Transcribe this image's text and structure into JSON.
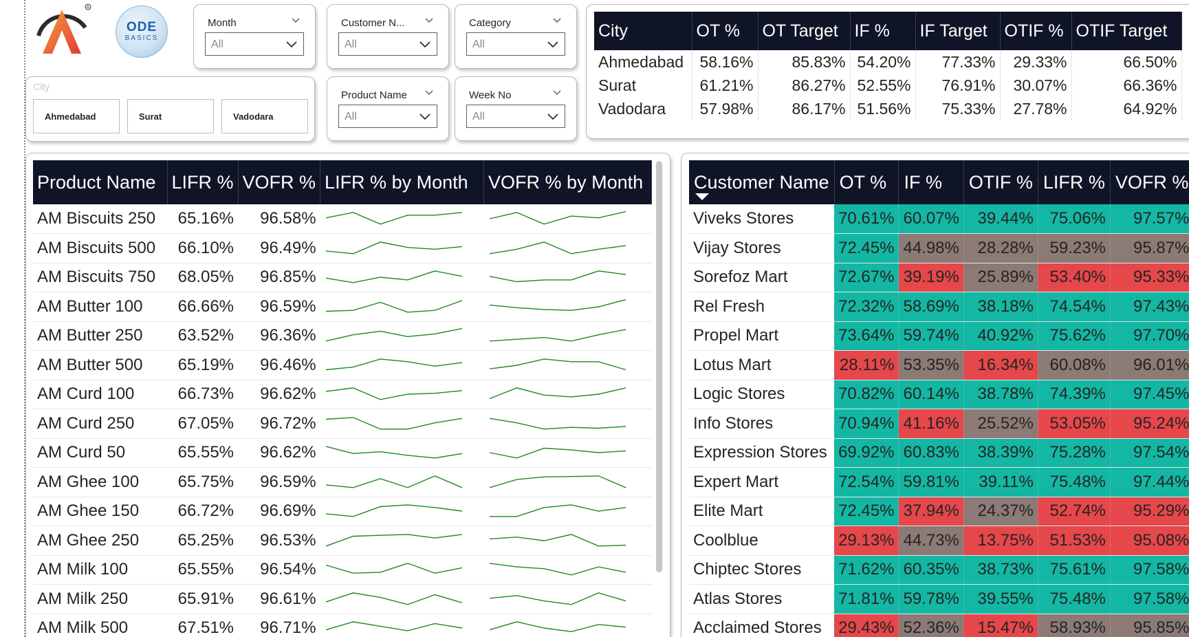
{
  "colors": {
    "header_bg": "#0f1527",
    "good": "#13b7a3",
    "neutral": "#8b7a75",
    "bad": "#e5474b",
    "spark_line": "#1e8a1e"
  },
  "logos": {
    "codebasics_top": "ODE",
    "codebasics_bottom": "BASICS"
  },
  "filters": {
    "month": {
      "title": "Month",
      "value": "All"
    },
    "customer": {
      "title": "Customer N...",
      "value": "All"
    },
    "category": {
      "title": "Category",
      "value": "All"
    },
    "product": {
      "title": "Product Name",
      "value": "All"
    },
    "week": {
      "title": "Week No",
      "value": "All"
    },
    "city": {
      "title": "City",
      "buttons": [
        "Ahmedabad",
        "Surat",
        "Vadodara"
      ]
    }
  },
  "city_table": {
    "headers": [
      "City",
      "OT %",
      "OT Target",
      "IF %",
      "IF Target",
      "OTIF %",
      "OTIF Target"
    ],
    "rows": [
      [
        "Ahmedabad",
        "58.16%",
        "85.83%",
        "54.20%",
        "77.33%",
        "29.33%",
        "66.50%"
      ],
      [
        "Surat",
        "61.21%",
        "86.27%",
        "52.55%",
        "76.91%",
        "30.07%",
        "66.36%"
      ],
      [
        "Vadodara",
        "57.98%",
        "86.17%",
        "51.56%",
        "75.33%",
        "27.78%",
        "64.92%"
      ]
    ]
  },
  "product_table": {
    "headers": [
      "Product Name",
      "LIFR %",
      "VOFR %",
      "LIFR % by Month",
      "VOFR % by Month"
    ],
    "rows": [
      {
        "name": "AM Biscuits 250",
        "lifr": "65.16%",
        "vofr": "96.58%",
        "lifr_trend": [
          0.55,
          0.85,
          0.2,
          0.7,
          0.7,
          0.85
        ],
        "vofr_trend": [
          0.5,
          0.85,
          0.2,
          0.65,
          0.55,
          0.9
        ]
      },
      {
        "name": "AM Biscuits 500",
        "lifr": "66.10%",
        "vofr": "96.49%",
        "lifr_trend": [
          0.35,
          0.2,
          0.85,
          0.55,
          0.45,
          0.6
        ],
        "vofr_trend": [
          0.2,
          0.45,
          0.85,
          0.2,
          0.45,
          0.65
        ]
      },
      {
        "name": "AM Biscuits 750",
        "lifr": "68.05%",
        "vofr": "96.85%",
        "lifr_trend": [
          0.45,
          0.2,
          0.5,
          0.35,
          0.85,
          0.55
        ],
        "vofr_trend": [
          0.55,
          0.25,
          0.35,
          0.35,
          0.85,
          0.65
        ]
      },
      {
        "name": "AM Butter 100",
        "lifr": "66.66%",
        "vofr": "96.59%",
        "lifr_trend": [
          0.25,
          0.3,
          0.75,
          0.2,
          0.3,
          0.85
        ],
        "vofr_trend": [
          0.6,
          0.45,
          0.35,
          0.3,
          0.5,
          0.9
        ]
      },
      {
        "name": "AM Butter 250",
        "lifr": "63.52%",
        "vofr": "96.36%",
        "lifr_trend": [
          0.2,
          0.55,
          0.75,
          0.45,
          0.6,
          0.9
        ],
        "vofr_trend": [
          0.2,
          0.3,
          0.4,
          0.2,
          0.55,
          0.85
        ]
      },
      {
        "name": "AM Butter 500",
        "lifr": "65.19%",
        "vofr": "96.46%",
        "lifr_trend": [
          0.25,
          0.4,
          0.85,
          0.7,
          0.45,
          0.65
        ],
        "vofr_trend": [
          0.3,
          0.5,
          0.85,
          0.7,
          0.7,
          0.25
        ]
      },
      {
        "name": "AM Curd 100",
        "lifr": "66.73%",
        "vofr": "96.62%",
        "lifr_trend": [
          0.65,
          0.85,
          0.2,
          0.5,
          0.55,
          0.7
        ],
        "vofr_trend": [
          0.25,
          0.85,
          0.45,
          0.35,
          0.5,
          0.85
        ]
      },
      {
        "name": "AM Curd 250",
        "lifr": "67.05%",
        "vofr": "96.72%",
        "lifr_trend": [
          0.75,
          0.85,
          0.2,
          0.2,
          0.55,
          0.8
        ],
        "vofr_trend": [
          0.8,
          0.55,
          0.2,
          0.3,
          0.25,
          0.35
        ]
      },
      {
        "name": "AM Curd 50",
        "lifr": "65.55%",
        "vofr": "96.62%",
        "lifr_trend": [
          0.85,
          0.45,
          0.55,
          0.35,
          0.2,
          0.45
        ],
        "vofr_trend": [
          0.5,
          0.2,
          0.75,
          0.65,
          0.5,
          0.6
        ]
      },
      {
        "name": "AM Ghee 100",
        "lifr": "65.75%",
        "vofr": "96.59%",
        "lifr_trend": [
          0.35,
          0.2,
          0.7,
          0.2,
          0.85,
          0.2
        ],
        "vofr_trend": [
          0.2,
          0.65,
          0.8,
          0.82,
          0.85,
          0.2
        ]
      },
      {
        "name": "AM Ghee 150",
        "lifr": "66.72%",
        "vofr": "96.69%",
        "lifr_trend": [
          0.35,
          0.2,
          0.75,
          0.85,
          0.7,
          0.5
        ],
        "vofr_trend": [
          0.2,
          0.2,
          0.7,
          0.85,
          0.5,
          0.7
        ]
      },
      {
        "name": "AM Ghee 250",
        "lifr": "65.25%",
        "vofr": "96.53%",
        "lifr_trend": [
          0.2,
          0.75,
          0.8,
          0.85,
          0.65,
          0.85
        ],
        "vofr_trend": [
          0.6,
          0.7,
          0.5,
          0.85,
          0.2,
          0.25
        ]
      },
      {
        "name": "AM Milk 100",
        "lifr": "65.55%",
        "vofr": "96.54%",
        "lifr_trend": [
          0.75,
          0.3,
          0.35,
          0.85,
          0.3,
          0.6
        ],
        "vofr_trend": [
          0.85,
          0.65,
          0.55,
          0.2,
          0.65,
          0.35
        ]
      },
      {
        "name": "AM Milk 250",
        "lifr": "65.91%",
        "vofr": "96.61%",
        "lifr_trend": [
          0.35,
          0.85,
          0.6,
          0.2,
          0.75,
          0.3
        ],
        "vofr_trend": [
          0.55,
          0.7,
          0.4,
          0.2,
          0.85,
          0.4
        ]
      },
      {
        "name": "AM Milk 500",
        "lifr": "67.51%",
        "vofr": "96.71%",
        "lifr_trend": [
          0.4,
          0.85,
          0.6,
          0.35,
          0.75,
          0.5
        ],
        "vofr_trend": [
          0.4,
          0.85,
          0.5,
          0.3,
          0.7,
          0.55
        ]
      }
    ]
  },
  "customer_table": {
    "headers": [
      "Customer Name",
      "OT %",
      "IF %",
      "OTIF %",
      "LIFR %",
      "VOFR %"
    ],
    "rows": [
      {
        "name": "Viveks Stores",
        "values": [
          "70.61%",
          "60.07%",
          "39.44%",
          "75.06%",
          "97.57%"
        ],
        "status": [
          "good",
          "good",
          "good",
          "good",
          "good"
        ]
      },
      {
        "name": "Vijay Stores",
        "values": [
          "72.45%",
          "44.98%",
          "28.28%",
          "59.23%",
          "95.87%"
        ],
        "status": [
          "good",
          "neutral",
          "neutral",
          "neutral",
          "neutral"
        ]
      },
      {
        "name": "Sorefoz Mart",
        "values": [
          "72.67%",
          "39.19%",
          "25.89%",
          "53.40%",
          "95.33%"
        ],
        "status": [
          "good",
          "bad",
          "neutral",
          "bad",
          "bad"
        ]
      },
      {
        "name": "Rel Fresh",
        "values": [
          "72.32%",
          "58.69%",
          "38.18%",
          "74.54%",
          "97.43%"
        ],
        "status": [
          "good",
          "good",
          "good",
          "good",
          "good"
        ]
      },
      {
        "name": "Propel Mart",
        "values": [
          "73.64%",
          "59.74%",
          "40.92%",
          "75.62%",
          "97.70%"
        ],
        "status": [
          "good",
          "good",
          "good",
          "good",
          "good"
        ]
      },
      {
        "name": "Lotus Mart",
        "values": [
          "28.11%",
          "53.35%",
          "16.34%",
          "60.08%",
          "96.01%"
        ],
        "status": [
          "bad",
          "neutral",
          "bad",
          "neutral",
          "neutral"
        ]
      },
      {
        "name": "Logic Stores",
        "values": [
          "70.82%",
          "60.14%",
          "38.78%",
          "74.39%",
          "97.45%"
        ],
        "status": [
          "good",
          "good",
          "good",
          "good",
          "good"
        ]
      },
      {
        "name": "Info Stores",
        "values": [
          "70.94%",
          "41.16%",
          "25.52%",
          "53.05%",
          "95.24%"
        ],
        "status": [
          "good",
          "bad",
          "neutral",
          "bad",
          "bad"
        ]
      },
      {
        "name": "Expression Stores",
        "values": [
          "69.92%",
          "60.83%",
          "38.39%",
          "75.28%",
          "97.54%"
        ],
        "status": [
          "good",
          "good",
          "good",
          "good",
          "good"
        ]
      },
      {
        "name": "Expert Mart",
        "values": [
          "72.54%",
          "59.81%",
          "39.11%",
          "75.48%",
          "97.44%"
        ],
        "status": [
          "good",
          "good",
          "good",
          "good",
          "good"
        ]
      },
      {
        "name": "Elite Mart",
        "values": [
          "72.45%",
          "37.94%",
          "24.37%",
          "52.74%",
          "95.29%"
        ],
        "status": [
          "good",
          "bad",
          "neutral",
          "bad",
          "bad"
        ]
      },
      {
        "name": "Coolblue",
        "values": [
          "29.13%",
          "44.73%",
          "13.75%",
          "51.53%",
          "95.08%"
        ],
        "status": [
          "bad",
          "neutral",
          "bad",
          "bad",
          "bad"
        ]
      },
      {
        "name": "Chiptec Stores",
        "values": [
          "71.62%",
          "60.35%",
          "38.73%",
          "75.61%",
          "97.58%"
        ],
        "status": [
          "good",
          "good",
          "good",
          "good",
          "good"
        ]
      },
      {
        "name": "Atlas Stores",
        "values": [
          "71.81%",
          "59.78%",
          "39.55%",
          "75.48%",
          "97.58%"
        ],
        "status": [
          "good",
          "good",
          "good",
          "good",
          "good"
        ]
      },
      {
        "name": "Acclaimed Stores",
        "values": [
          "29.43%",
          "52.36%",
          "15.47%",
          "58.93%",
          "95.85%"
        ],
        "status": [
          "bad",
          "neutral",
          "bad",
          "neutral",
          "neutral"
        ]
      }
    ]
  }
}
